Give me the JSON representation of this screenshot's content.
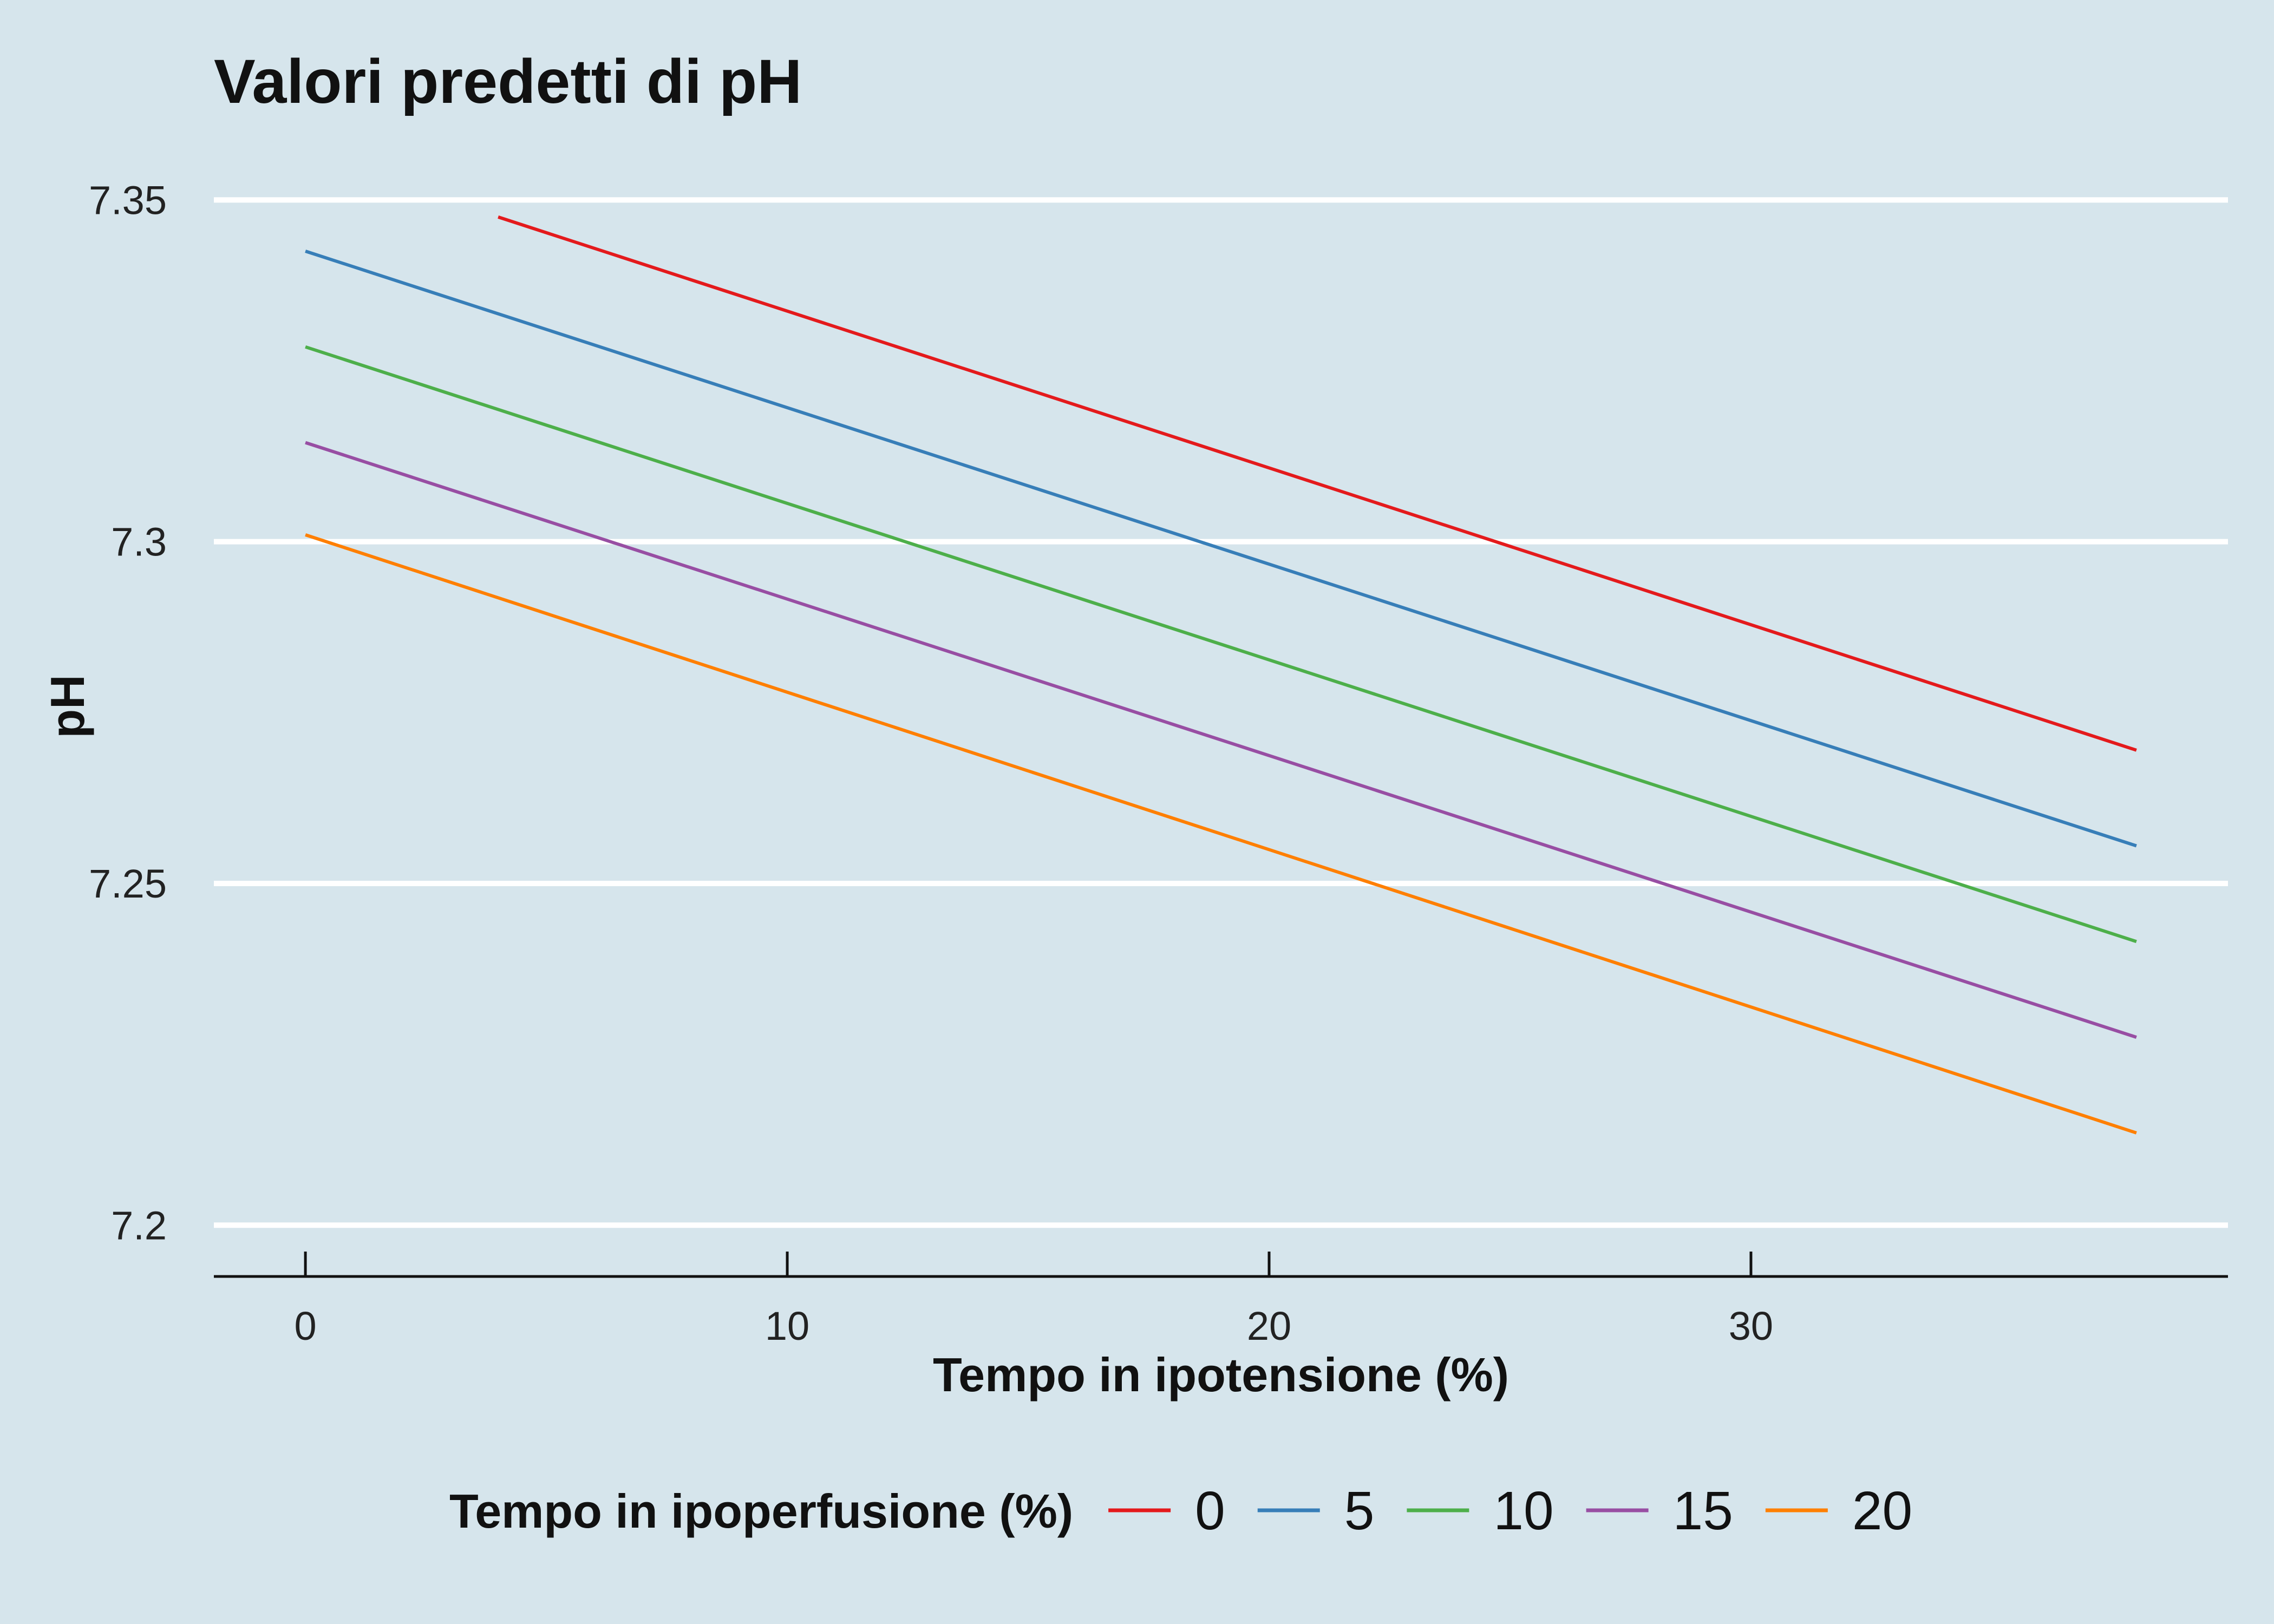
{
  "chart_data": {
    "type": "line",
    "title": "Valori predetti di pH",
    "xlabel": "Tempo in ipotensione (%)",
    "ylabel": "pH",
    "xlim": [
      -1.9,
      39.9
    ],
    "ylim": [
      7.1925,
      7.3585
    ],
    "xticks": [
      0,
      10,
      20,
      30
    ],
    "xtick_labels": [
      "0",
      "10",
      "20",
      "30"
    ],
    "yticks": [
      7.2,
      7.25,
      7.3,
      7.35
    ],
    "ytick_labels": [
      "7.2",
      "7.25",
      "7.3",
      "7.35"
    ],
    "grid": {
      "horizontal": true,
      "vertical": false,
      "color": "#ffffff"
    },
    "legend": {
      "title": "Tempo in ipoperfusione (%)",
      "position": "bottom"
    },
    "series": [
      {
        "name": "0",
        "color": "#e41a1c",
        "x": [
          4,
          38
        ],
        "y": [
          7.3475,
          7.2695
        ]
      },
      {
        "name": "5",
        "color": "#377eb8",
        "x": [
          0,
          38
        ],
        "y": [
          7.3425,
          7.2555
        ]
      },
      {
        "name": "10",
        "color": "#4daf4a",
        "x": [
          0,
          38
        ],
        "y": [
          7.3285,
          7.2415
        ]
      },
      {
        "name": "15",
        "color": "#984ea3",
        "x": [
          0,
          38
        ],
        "y": [
          7.3145,
          7.2275
        ]
      },
      {
        "name": "20",
        "color": "#ff7f00",
        "x": [
          0,
          38
        ],
        "y": [
          7.301,
          7.2135
        ]
      }
    ]
  }
}
